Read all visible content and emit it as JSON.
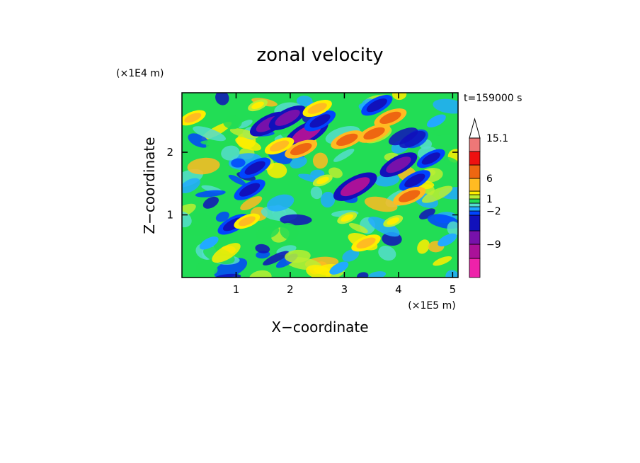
{
  "chart_data": {
    "type": "heatmap",
    "title": "zonal velocity",
    "xlabel": "X−coordinate",
    "ylabel": "Z−coordinate",
    "x_unit": "(×1E5 m)",
    "y_unit": "(×1E4 m)",
    "time_label": "t=159000 s",
    "xlim": [
      0,
      5.1
    ],
    "ylim": [
      0,
      2.95
    ],
    "x_ticks": [
      1,
      2,
      3,
      4,
      5
    ],
    "y_ticks": [
      1,
      2
    ],
    "x_tick_labels": [
      "1",
      "2",
      "3",
      "4",
      "5"
    ],
    "y_tick_labels": [
      "1",
      "2"
    ],
    "colorbar": {
      "levels": [
        -15,
        -12,
        -9,
        -6,
        -3,
        -2,
        -1,
        0,
        1,
        2,
        3,
        6,
        9,
        12,
        15.1
      ],
      "colors": [
        "#ee22aa",
        "#aa1199",
        "#7711aa",
        "#1111bb",
        "#0044ff",
        "#22aaff",
        "#55ddcc",
        "#22dd55",
        "#bbee33",
        "#ffee00",
        "#ffbb22",
        "#ee6611",
        "#ee1111",
        "#ee7777",
        "#ffbbbb"
      ],
      "labels": [
        "15.1",
        "6",
        "1",
        "−2",
        "−9"
      ],
      "label_values": [
        15.1,
        6,
        1,
        -2,
        -9
      ]
    },
    "features": [
      {
        "x": 1.6,
        "z": 2.45,
        "value": -8
      },
      {
        "x": 1.95,
        "z": 2.55,
        "value": -8
      },
      {
        "x": 2.3,
        "z": 2.3,
        "value": -10
      },
      {
        "x": 2.55,
        "z": 2.5,
        "value": -6
      },
      {
        "x": 1.35,
        "z": 1.75,
        "value": -6
      },
      {
        "x": 1.25,
        "z": 1.4,
        "value": -6
      },
      {
        "x": 3.2,
        "z": 1.45,
        "value": -10
      },
      {
        "x": 3.6,
        "z": 2.75,
        "value": -6
      },
      {
        "x": 4.0,
        "z": 1.8,
        "value": -8
      },
      {
        "x": 4.3,
        "z": 1.55,
        "value": -6
      },
      {
        "x": 0.95,
        "z": 0.85,
        "value": -6
      },
      {
        "x": 4.6,
        "z": 1.9,
        "value": -5
      },
      {
        "x": 2.2,
        "z": 2.05,
        "value": 6
      },
      {
        "x": 1.8,
        "z": 2.1,
        "value": 5
      },
      {
        "x": 2.5,
        "z": 2.7,
        "value": 5
      },
      {
        "x": 3.05,
        "z": 2.2,
        "value": 6
      },
      {
        "x": 3.55,
        "z": 2.3,
        "value": 6
      },
      {
        "x": 3.85,
        "z": 2.55,
        "value": 6
      },
      {
        "x": 4.2,
        "z": 1.3,
        "value": 6
      },
      {
        "x": 3.4,
        "z": 0.55,
        "value": 5
      },
      {
        "x": 1.2,
        "z": 0.9,
        "value": 4
      },
      {
        "x": 0.2,
        "z": 2.55,
        "value": 4
      },
      {
        "x": 3.05,
        "z": 0.95,
        "value": 2
      },
      {
        "x": 1.4,
        "z": 2.75,
        "value": 2
      },
      {
        "x": 2.6,
        "z": 1.55,
        "value": 2
      },
      {
        "x": 3.9,
        "z": 0.9,
        "value": 2
      },
      {
        "x": 0.5,
        "z": 0.55,
        "value": -2
      },
      {
        "x": 2.9,
        "z": 0.15,
        "value": -2
      },
      {
        "x": 4.9,
        "z": 0.6,
        "value": -2
      },
      {
        "x": 4.7,
        "z": 2.5,
        "value": -2
      }
    ]
  }
}
